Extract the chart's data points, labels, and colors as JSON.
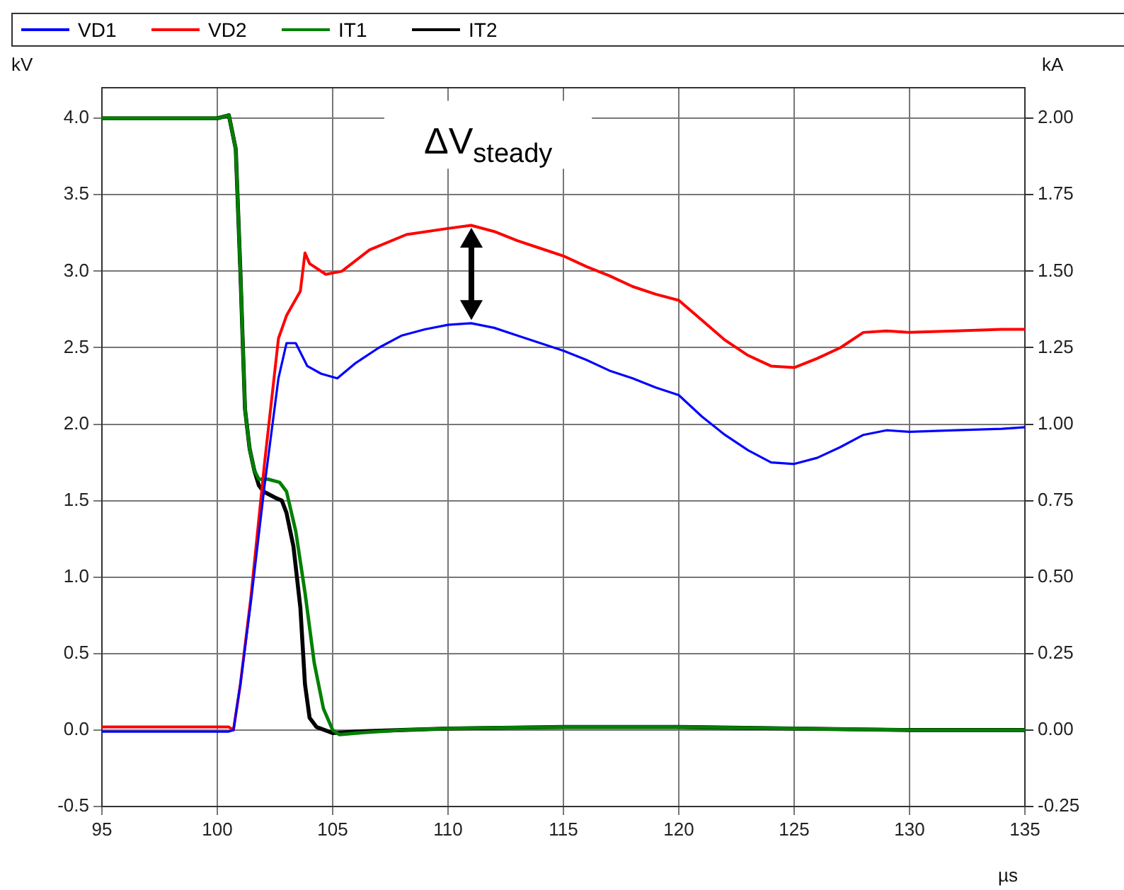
{
  "chart_data": {
    "type": "line",
    "xlabel": "µs",
    "ylabel": "kV",
    "y2label": "kA",
    "xlim": [
      95,
      135
    ],
    "xticks": [
      95,
      100,
      105,
      110,
      115,
      120,
      125,
      130,
      135
    ],
    "ylim": [
      -0.5,
      4.2
    ],
    "yticks": [
      {
        "value": -0.5,
        "label": "-0.5"
      },
      {
        "value": 0,
        "label": "0.0"
      },
      {
        "value": 0.5,
        "label": "0.5"
      },
      {
        "value": 1,
        "label": "1.0"
      },
      {
        "value": 1.5,
        "label": "1.5"
      },
      {
        "value": 2,
        "label": "2.0"
      },
      {
        "value": 2.5,
        "label": "2.5"
      },
      {
        "value": 3,
        "label": "3.0"
      },
      {
        "value": 3.5,
        "label": "3.5"
      },
      {
        "value": 4,
        "label": "4.0"
      }
    ],
    "y2lim": [
      -0.25,
      2.1
    ],
    "y2ticks": [
      {
        "value": -0.25,
        "label": "-0.25"
      },
      {
        "value": 0,
        "label": "0.00"
      },
      {
        "value": 0.25,
        "label": "0.25"
      },
      {
        "value": 0.5,
        "label": "0.50"
      },
      {
        "value": 0.75,
        "label": "0.75"
      },
      {
        "value": 1,
        "label": "1.00"
      },
      {
        "value": 1.25,
        "label": "1.25"
      },
      {
        "value": 1.5,
        "label": "1.50"
      },
      {
        "value": 1.75,
        "label": "1.75"
      },
      {
        "value": 2,
        "label": "2.00"
      }
    ],
    "grid": true,
    "legend": "top",
    "marker": "none",
    "line_style": "solid",
    "annotations": [
      "ΔV$_{steady}$"
    ],
    "series": [
      {
        "name": "VD1",
        "color": "#0000ff",
        "x": [
          95,
          97,
          99,
          100.5,
          100.7,
          101,
          101.45,
          102.05,
          102.65,
          103,
          103.4,
          103.9,
          104.5,
          105.2,
          106,
          107,
          108,
          109,
          110,
          111,
          112,
          113,
          114,
          115,
          116,
          117,
          118,
          119,
          120,
          121,
          122,
          123,
          124,
          125,
          126,
          127,
          128,
          129,
          130,
          132,
          134,
          135
        ],
        "values": [
          -0.01,
          -0.01,
          -0.01,
          -0.01,
          0,
          0.3,
          0.83,
          1.6,
          2.3,
          2.53,
          2.53,
          2.38,
          2.33,
          2.3,
          2.4,
          2.5,
          2.58,
          2.62,
          2.65,
          2.66,
          2.63,
          2.58,
          2.53,
          2.48,
          2.42,
          2.35,
          2.3,
          2.24,
          2.19,
          2.05,
          1.93,
          1.83,
          1.75,
          1.74,
          1.78,
          1.85,
          1.93,
          1.96,
          1.95,
          1.96,
          1.97,
          1.98
        ]
      },
      {
        "name": "VD2",
        "color": "#ff0000",
        "x": [
          95,
          97,
          99,
          100.5,
          100.7,
          101,
          101.45,
          102.05,
          102.65,
          103,
          103.6,
          103.8,
          104,
          104.7,
          105.4,
          106.6,
          108.2,
          110,
          111,
          112,
          113,
          114,
          115,
          116,
          117,
          118,
          119,
          120,
          121,
          122,
          123,
          124,
          125,
          126,
          127,
          128,
          129,
          130,
          132,
          134,
          135
        ],
        "values": [
          0.02,
          0.02,
          0.02,
          0.02,
          0,
          0.3,
          0.86,
          1.75,
          2.56,
          2.71,
          2.87,
          3.12,
          3.05,
          2.98,
          3.0,
          3.14,
          3.24,
          3.28,
          3.3,
          3.26,
          3.2,
          3.15,
          3.1,
          3.03,
          2.97,
          2.9,
          2.85,
          2.81,
          2.68,
          2.55,
          2.45,
          2.38,
          2.37,
          2.43,
          2.5,
          2.6,
          2.61,
          2.6,
          2.61,
          2.62,
          2.62
        ]
      },
      {
        "name": "IT1",
        "color": "#008000",
        "axis": "y2",
        "x": [
          95,
          98,
          100,
          100.5,
          100.8,
          101,
          101.2,
          101.4,
          101.6,
          101.8,
          102.2,
          102.7,
          103,
          103.4,
          103.8,
          104.2,
          104.6,
          105,
          105.3,
          106,
          108,
          110,
          115,
          120,
          125,
          130,
          135
        ],
        "values": [
          2.0,
          2.0,
          2.0,
          2.01,
          1.9,
          1.5,
          1.05,
          0.92,
          0.85,
          0.82,
          0.82,
          0.81,
          0.78,
          0.65,
          0.45,
          0.22,
          0.07,
          0,
          -0.015,
          -0.01,
          0,
          0.005,
          0.01,
          0.01,
          0.005,
          0,
          0
        ]
      },
      {
        "name": "IT2",
        "color": "#000000",
        "axis": "y2",
        "x": [
          95,
          98,
          100,
          100.5,
          100.8,
          101,
          101.2,
          101.4,
          101.6,
          101.8,
          102,
          102.5,
          102.8,
          103,
          103.3,
          103.6,
          103.8,
          104,
          104.3,
          105,
          106,
          108,
          110,
          115,
          120,
          125,
          130,
          135
        ],
        "values": [
          2.0,
          2.0,
          2.0,
          2.01,
          1.9,
          1.5,
          1.05,
          0.92,
          0.85,
          0.8,
          0.78,
          0.76,
          0.75,
          0.71,
          0.6,
          0.4,
          0.15,
          0.04,
          0.01,
          -0.01,
          -0.005,
          0,
          0.005,
          0.01,
          0.01,
          0.005,
          0,
          0
        ]
      }
    ]
  }
}
